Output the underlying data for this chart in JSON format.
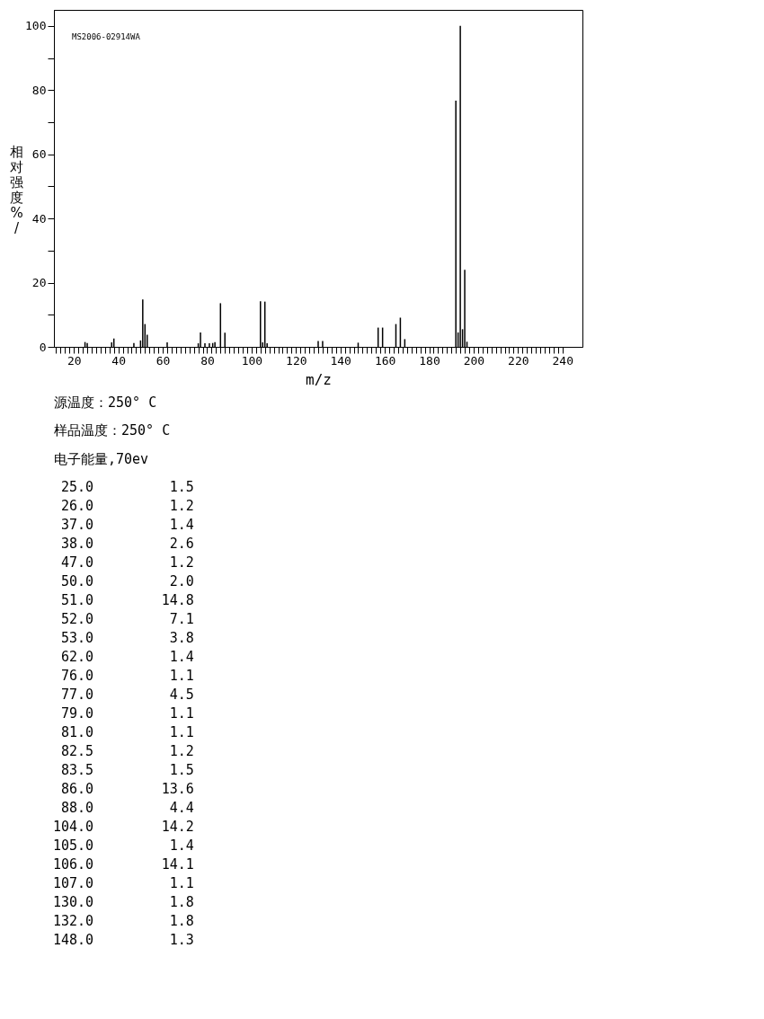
{
  "chart_data": [
    {
      "type": "bar",
      "xlabel": "m/z",
      "ylabel": "相对强度%/",
      "color": "#000000",
      "annotations": [
        "MS2006-02914WA",
        "源温度：250° C",
        "样品温度：250° C",
        "电子能量,70ev"
      ],
      "x": [
        25,
        26,
        37,
        38,
        47,
        50,
        51,
        52,
        53,
        62,
        76,
        77,
        79,
        81,
        82.5,
        83.5,
        86,
        88,
        104,
        105,
        106,
        107,
        130,
        132,
        148,
        157,
        159,
        165,
        167,
        169,
        192,
        193,
        194,
        195,
        196,
        197
      ],
      "values": [
        1.5,
        1.2,
        1.4,
        2.6,
        1.2,
        2.0,
        14.8,
        7.1,
        3.8,
        1.4,
        1.1,
        4.5,
        1.1,
        1.1,
        1.2,
        1.5,
        13.6,
        4.4,
        14.2,
        1.4,
        14.1,
        1.1,
        1.8,
        1.8,
        1.3,
        6.0,
        6.0,
        7.1,
        9.1,
        2.4,
        76.7,
        4.5,
        100,
        5.5,
        24.0,
        1.6
      ],
      "xlim": [
        11,
        249
      ],
      "ylim": [
        0,
        105
      ],
      "yticks": [
        0,
        {
          "value": 10,
          "label": null
        },
        20,
        {
          "value": 30,
          "label": null
        },
        40,
        {
          "value": 50,
          "label": null
        },
        60,
        {
          "value": 70,
          "label": null
        },
        80,
        {
          "value": 90,
          "label": null
        },
        100
      ],
      "xticks": [
        {
          "value": 12,
          "label": null
        },
        {
          "value": 14,
          "label": null
        },
        {
          "value": 16,
          "label": null
        },
        {
          "value": 18,
          "label": null
        },
        20,
        {
          "value": 22,
          "label": null
        },
        {
          "value": 24,
          "label": null
        },
        {
          "value": 26,
          "label": null
        },
        {
          "value": 28,
          "label": null
        },
        {
          "value": 30,
          "label": null
        },
        {
          "value": 32,
          "label": null
        },
        {
          "value": 34,
          "label": null
        },
        {
          "value": 36,
          "label": null
        },
        {
          "value": 38,
          "label": null
        },
        40,
        {
          "value": 42,
          "label": null
        },
        {
          "value": 44,
          "label": null
        },
        {
          "value": 46,
          "label": null
        },
        {
          "value": 48,
          "label": null
        },
        {
          "value": 50,
          "label": null
        },
        {
          "value": 52,
          "label": null
        },
        {
          "value": 54,
          "label": null
        },
        {
          "value": 56,
          "label": null
        },
        {
          "value": 58,
          "label": null
        },
        60,
        {
          "value": 62,
          "label": null
        },
        {
          "value": 64,
          "label": null
        },
        {
          "value": 66,
          "label": null
        },
        {
          "value": 68,
          "label": null
        },
        {
          "value": 70,
          "label": null
        },
        {
          "value": 72,
          "label": null
        },
        {
          "value": 74,
          "label": null
        },
        {
          "value": 76,
          "label": null
        },
        {
          "value": 78,
          "label": null
        },
        80,
        {
          "value": 82,
          "label": null
        },
        {
          "value": 84,
          "label": null
        },
        {
          "value": 86,
          "label": null
        },
        {
          "value": 88,
          "label": null
        },
        {
          "value": 90,
          "label": null
        },
        {
          "value": 92,
          "label": null
        },
        {
          "value": 94,
          "label": null
        },
        {
          "value": 96,
          "label": null
        },
        {
          "value": 98,
          "label": null
        },
        100,
        {
          "value": 102,
          "label": null
        },
        {
          "value": 104,
          "label": null
        },
        {
          "value": 106,
          "label": null
        },
        {
          "value": 108,
          "label": null
        },
        {
          "value": 110,
          "label": null
        },
        {
          "value": 112,
          "label": null
        },
        {
          "value": 114,
          "label": null
        },
        {
          "value": 116,
          "label": null
        },
        {
          "value": 118,
          "label": null
        },
        120,
        {
          "value": 122,
          "label": null
        },
        {
          "value": 124,
          "label": null
        },
        {
          "value": 126,
          "label": null
        },
        {
          "value": 128,
          "label": null
        },
        {
          "value": 130,
          "label": null
        },
        {
          "value": 132,
          "label": null
        },
        {
          "value": 134,
          "label": null
        },
        {
          "value": 136,
          "label": null
        },
        {
          "value": 138,
          "label": null
        },
        140,
        {
          "value": 142,
          "label": null
        },
        {
          "value": 144,
          "label": null
        },
        {
          "value": 146,
          "label": null
        },
        {
          "value": 148,
          "label": null
        },
        {
          "value": 150,
          "label": null
        },
        {
          "value": 152,
          "label": null
        },
        {
          "value": 154,
          "label": null
        },
        {
          "value": 156,
          "label": null
        },
        {
          "value": 158,
          "label": null
        },
        160,
        {
          "value": 162,
          "label": null
        },
        {
          "value": 164,
          "label": null
        },
        {
          "value": 166,
          "label": null
        },
        {
          "value": 168,
          "label": null
        },
        {
          "value": 170,
          "label": null
        },
        {
          "value": 172,
          "label": null
        },
        {
          "value": 174,
          "label": null
        },
        {
          "value": 176,
          "label": null
        },
        {
          "value": 178,
          "label": null
        },
        180,
        {
          "value": 182,
          "label": null
        },
        {
          "value": 184,
          "label": null
        },
        {
          "value": 186,
          "label": null
        },
        {
          "value": 188,
          "label": null
        },
        {
          "value": 190,
          "label": null
        },
        {
          "value": 192,
          "label": null
        },
        {
          "value": 194,
          "label": null
        },
        {
          "value": 196,
          "label": null
        },
        {
          "value": 198,
          "label": null
        },
        200,
        {
          "value": 202,
          "label": null
        },
        {
          "value": 204,
          "label": null
        },
        {
          "value": 206,
          "label": null
        },
        {
          "value": 208,
          "label": null
        },
        {
          "value": 210,
          "label": null
        },
        {
          "value": 212,
          "label": null
        },
        {
          "value": 214,
          "label": null
        },
        {
          "value": 216,
          "label": null
        },
        {
          "value": 218,
          "label": null
        },
        220,
        {
          "value": 222,
          "label": null
        },
        {
          "value": 224,
          "label": null
        },
        {
          "value": 226,
          "label": null
        },
        {
          "value": 228,
          "label": null
        },
        {
          "value": 230,
          "label": null
        },
        {
          "value": 232,
          "label": null
        },
        {
          "value": 234,
          "label": null
        },
        {
          "value": 236,
          "label": null
        },
        {
          "value": 238,
          "label": null
        },
        240
      ]
    },
    {
      "type": "other",
      "annotations": [
        "25.0",
        "1.5",
        "26.0",
        "1.2",
        "37.0",
        "1.4",
        "38.0",
        "2.6",
        "47.0",
        "1.2",
        "50.0",
        "2.0",
        "51.0",
        "14.8",
        "52.0",
        "7.1",
        "53.0",
        "3.8",
        "62.0",
        "1.4",
        "76.0",
        "1.1",
        "77.0",
        "4.5",
        "79.0",
        "1.1",
        "81.0",
        "1.1",
        "82.5",
        "1.2",
        "83.5",
        "1.5",
        "86.0",
        "13.6",
        "88.0",
        "4.4",
        "104.0",
        "14.2",
        "105.0",
        "1.4",
        "106.0",
        "14.1",
        "107.0",
        "1.1",
        "130.0",
        "1.8",
        "132.0",
        "1.8",
        "148.0",
        "1.3"
      ]
    }
  ]
}
